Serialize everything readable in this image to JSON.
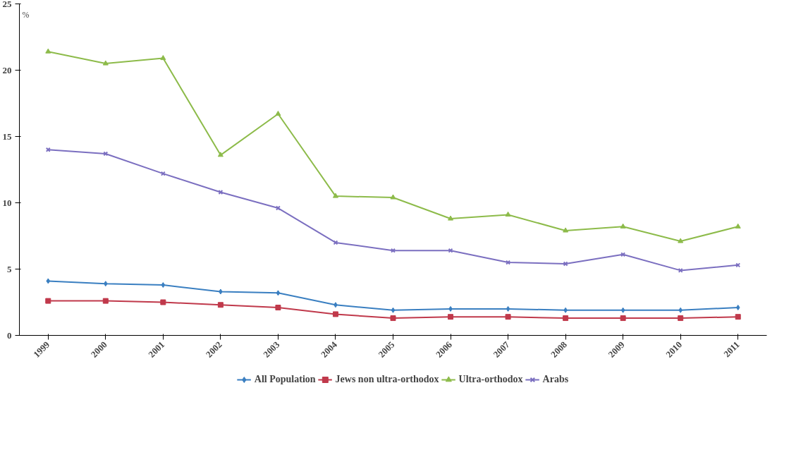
{
  "chart_data": {
    "type": "line",
    "ylabel": "%",
    "categories": [
      "1999",
      "2000",
      "2001",
      "2002",
      "2003",
      "2004",
      "2005",
      "2006",
      "2007",
      "2008",
      "2009",
      "2010",
      "2011"
    ],
    "ylim": [
      0,
      25
    ],
    "yticks": [
      0,
      5,
      10,
      15,
      20,
      25
    ],
    "grid": false,
    "legend": "bottom",
    "series": [
      {
        "name": "All Population",
        "color": "#3a7fc1",
        "marker": "diamond",
        "values": [
          4.1,
          3.9,
          3.8,
          3.3,
          3.2,
          2.3,
          1.9,
          2.0,
          2.0,
          1.9,
          1.9,
          1.9,
          2.1
        ]
      },
      {
        "name": "Jews non ultra-orthodox",
        "color": "#c0394b",
        "marker": "square",
        "values": [
          2.6,
          2.6,
          2.5,
          2.3,
          2.1,
          1.6,
          1.3,
          1.4,
          1.4,
          1.3,
          1.3,
          1.3,
          1.4
        ]
      },
      {
        "name": "Ultra-orthodox",
        "color": "#8dbb4a",
        "marker": "triangle",
        "values": [
          21.4,
          20.5,
          20.9,
          13.6,
          16.7,
          10.5,
          10.4,
          8.8,
          9.1,
          7.9,
          8.2,
          7.1,
          8.2
        ]
      },
      {
        "name": "Arabs",
        "color": "#7b6fc0",
        "marker": "cross",
        "values": [
          14.0,
          13.7,
          12.2,
          10.8,
          9.6,
          7.0,
          6.4,
          6.4,
          5.5,
          5.4,
          6.1,
          4.9,
          5.3
        ]
      }
    ]
  }
}
